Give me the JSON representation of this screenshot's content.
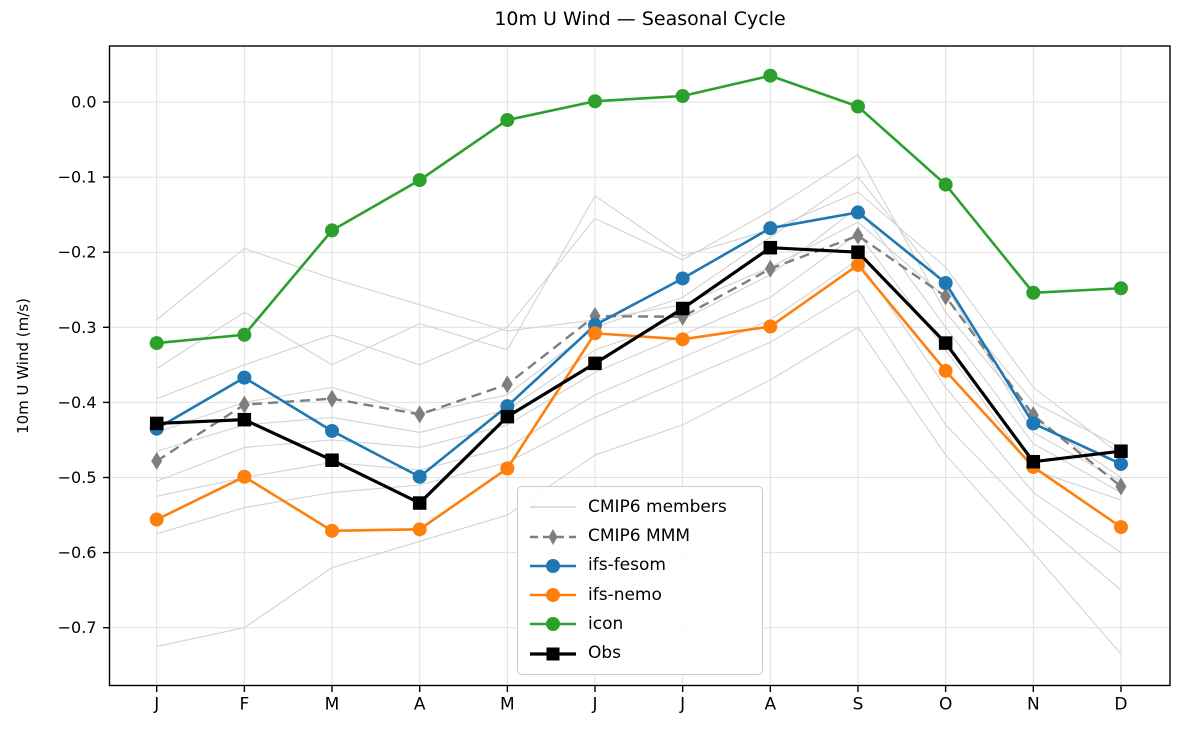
{
  "chart_data": {
    "type": "line",
    "title": "10m U Wind — Seasonal Cycle",
    "xlabel": "",
    "ylabel": "10m U Wind (m/s)",
    "months": [
      "J",
      "F",
      "M",
      "A",
      "M",
      "J",
      "J",
      "A",
      "S",
      "O",
      "N",
      "D"
    ],
    "y_ticks": [
      0.0,
      -0.1,
      -0.2,
      -0.3,
      -0.4,
      -0.5,
      -0.6,
      -0.7
    ],
    "y_tick_labels": [
      "0.0",
      "−0.1",
      "−0.2",
      "−0.3",
      "−0.4",
      "−0.5",
      "−0.6",
      "−0.7"
    ],
    "ylim": [
      -0.777,
      0.075
    ],
    "grid": true,
    "legend_position": "lower center",
    "colors": {
      "grid": "#e0e0e0",
      "spine": "#000000",
      "members": "#d3d3d3",
      "mmm": "#7f7f7f",
      "ifs_fesom": "#1f77b4",
      "ifs_nemo": "#ff7f0e",
      "icon": "#2ca02c",
      "obs": "#000000"
    },
    "members": {
      "label": "CMIP6 members",
      "values": [
        [
          -0.29,
          -0.195,
          -0.235,
          -0.27,
          -0.305,
          -0.29,
          -0.27,
          -0.22,
          -0.16,
          -0.26,
          -0.4,
          -0.46
        ],
        [
          -0.355,
          -0.28,
          -0.35,
          -0.295,
          -0.33,
          -0.125,
          -0.205,
          -0.17,
          -0.12,
          -0.22,
          -0.38,
          -0.47
        ],
        [
          -0.395,
          -0.35,
          -0.31,
          -0.35,
          -0.3,
          -0.155,
          -0.21,
          -0.145,
          -0.07,
          -0.28,
          -0.42,
          -0.5
        ],
        [
          -0.44,
          -0.4,
          -0.38,
          -0.415,
          -0.39,
          -0.3,
          -0.26,
          -0.18,
          -0.1,
          -0.245,
          -0.44,
          -0.505
        ],
        [
          -0.465,
          -0.43,
          -0.42,
          -0.44,
          -0.41,
          -0.33,
          -0.29,
          -0.23,
          -0.14,
          -0.3,
          -0.455,
          -0.52
        ],
        [
          -0.505,
          -0.46,
          -0.45,
          -0.46,
          -0.43,
          -0.36,
          -0.31,
          -0.26,
          -0.175,
          -0.33,
          -0.49,
          -0.53
        ],
        [
          -0.525,
          -0.5,
          -0.48,
          -0.49,
          -0.46,
          -0.39,
          -0.34,
          -0.29,
          -0.21,
          -0.38,
          -0.52,
          -0.6
        ],
        [
          -0.575,
          -0.54,
          -0.52,
          -0.51,
          -0.48,
          -0.42,
          -0.37,
          -0.32,
          -0.25,
          -0.43,
          -0.55,
          -0.65
        ],
        [
          -0.725,
          -0.7,
          -0.62,
          -0.585,
          -0.55,
          -0.47,
          -0.43,
          -0.37,
          -0.3,
          -0.47,
          -0.6,
          -0.735
        ]
      ]
    },
    "series": [
      {
        "name": "CMIP6 MMM",
        "color": "#7f7f7f",
        "marker": "diamond",
        "line_style": "dashed",
        "line_width": 2.4,
        "values": [
          -0.478,
          -0.403,
          -0.395,
          -0.416,
          -0.376,
          -0.285,
          -0.286,
          -0.222,
          -0.178,
          -0.259,
          -0.417,
          -0.512
        ]
      },
      {
        "name": "ifs-fesom",
        "color": "#1f77b4",
        "marker": "circle",
        "line_style": "solid",
        "line_width": 2.6,
        "values": [
          -0.435,
          -0.367,
          -0.438,
          -0.499,
          -0.405,
          -0.297,
          -0.235,
          -0.168,
          -0.147,
          -0.241,
          -0.428,
          -0.482
        ]
      },
      {
        "name": "ifs-nemo",
        "color": "#ff7f0e",
        "marker": "circle",
        "line_style": "solid",
        "line_width": 2.6,
        "values": [
          -0.556,
          -0.499,
          -0.571,
          -0.569,
          -0.488,
          -0.308,
          -0.316,
          -0.299,
          -0.217,
          -0.358,
          -0.486,
          -0.566
        ]
      },
      {
        "name": "icon",
        "color": "#2ca02c",
        "marker": "circle",
        "line_style": "solid",
        "line_width": 2.6,
        "values": [
          -0.321,
          -0.31,
          -0.171,
          -0.104,
          -0.024,
          0.001,
          0.008,
          0.035,
          -0.006,
          -0.11,
          -0.254,
          -0.248
        ]
      },
      {
        "name": "Obs",
        "color": "#000000",
        "marker": "square",
        "line_style": "solid",
        "line_width": 3.2,
        "values": [
          -0.428,
          -0.423,
          -0.477,
          -0.534,
          -0.419,
          -0.348,
          -0.275,
          -0.194,
          -0.2,
          -0.321,
          -0.479,
          -0.465
        ]
      }
    ]
  }
}
